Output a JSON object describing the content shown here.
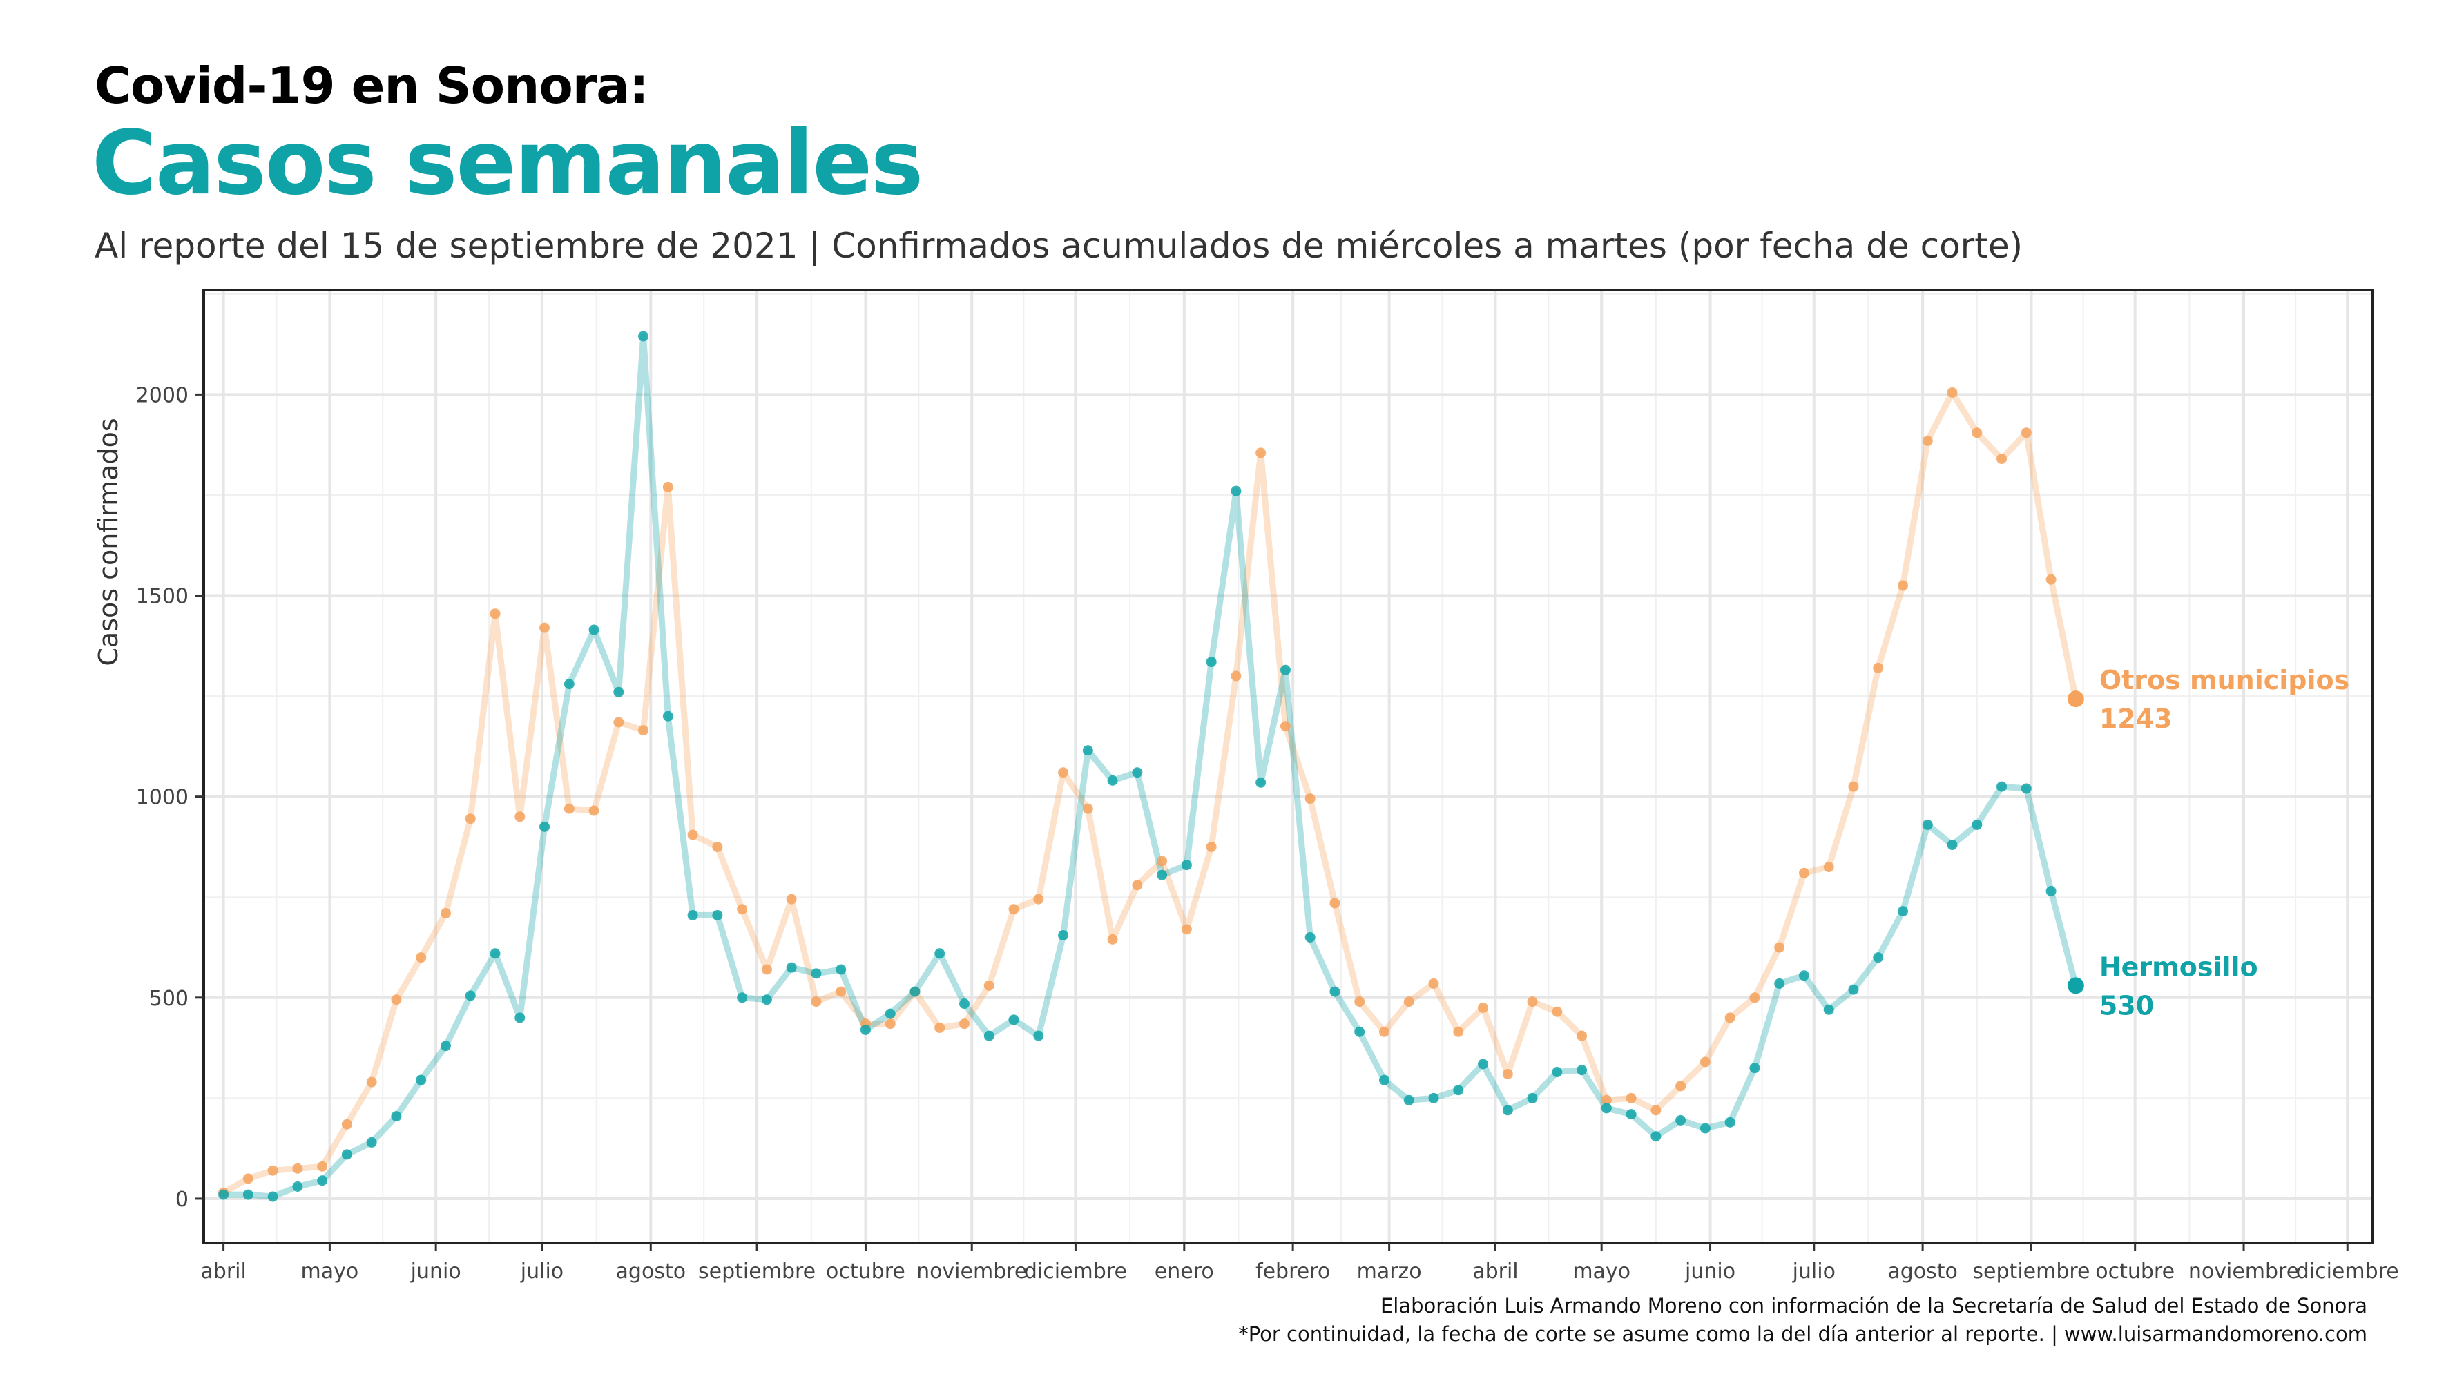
{
  "header": {
    "title": "Covid-19 en Sonora:",
    "subtitle_main": "Casos semanales",
    "description": "Al reporte del 15 de septiembre de 2021 | Confirmados acumulados de miércoles a martes (por fecha de corte)"
  },
  "footer": {
    "credit_line1": "Elaboración Luis Armando Moreno con información de la Secretaría de Salud del Estado de Sonora",
    "credit_line2": "*Por continuidad, la fecha de corte se asume como la del día anterior al reporte. | www.luisarmandomoreno.com"
  },
  "colors": {
    "hermosillo": "#0fa3a8",
    "otros": "#f5a25d",
    "title_accent": "#0fa3a8"
  },
  "chart_data": {
    "type": "line",
    "ylabel": "Casos confirmados",
    "xlabel": "",
    "ylim": [
      -110,
      2260
    ],
    "yticks": [
      0,
      500,
      1000,
      1500,
      2000
    ],
    "x_unit": "semana",
    "x_month_labels": [
      "abril",
      "mayo",
      "junio",
      "julio",
      "agosto",
      "septiembre",
      "octubre",
      "noviembre",
      "diciembre",
      "enero",
      "febrero",
      "marzo",
      "abril",
      "mayo",
      "junio",
      "julio",
      "agosto",
      "septiembre",
      "octubre",
      "noviembre",
      "diciembre"
    ],
    "x_month_week_index": [
      0,
      4.3,
      8.6,
      12.9,
      17.3,
      21.6,
      26.0,
      30.3,
      34.5,
      38.9,
      43.3,
      47.2,
      51.5,
      55.8,
      60.2,
      64.4,
      68.8,
      73.2,
      77.4,
      81.8,
      86.0
    ],
    "x_range": [
      -0.8,
      87.0
    ],
    "grid": true,
    "series": [
      {
        "name": "Otros municipios",
        "end_label": "1243",
        "values": [
          15,
          50,
          70,
          75,
          80,
          185,
          290,
          495,
          600,
          710,
          945,
          1455,
          950,
          1420,
          970,
          965,
          1185,
          1165,
          1770,
          905,
          875,
          720,
          570,
          745,
          490,
          515,
          435,
          435,
          515,
          425,
          435,
          530,
          720,
          745,
          1060,
          970,
          645,
          780,
          840,
          670,
          875,
          1300,
          1855,
          1175,
          995,
          735,
          490,
          415,
          490,
          535,
          415,
          475,
          310,
          490,
          465,
          405,
          245,
          250,
          220,
          280,
          340,
          450,
          500,
          625,
          810,
          825,
          1025,
          1320,
          1525,
          1885,
          2005,
          1905,
          1840,
          1905,
          1540,
          1243
        ]
      },
      {
        "name": "Hermosillo",
        "end_label": "530",
        "values": [
          10,
          10,
          5,
          30,
          45,
          110,
          140,
          205,
          295,
          380,
          505,
          610,
          450,
          925,
          1280,
          1415,
          1260,
          2145,
          1200,
          705,
          705,
          500,
          495,
          575,
          560,
          570,
          420,
          460,
          515,
          610,
          485,
          405,
          445,
          405,
          655,
          1115,
          1040,
          1060,
          805,
          830,
          1335,
          1760,
          1035,
          1315,
          650,
          515,
          415,
          295,
          245,
          250,
          270,
          335,
          220,
          250,
          315,
          320,
          225,
          210,
          155,
          195,
          175,
          190,
          325,
          535,
          555,
          470,
          520,
          600,
          715,
          930,
          880,
          930,
          1025,
          1020,
          765,
          530
        ]
      }
    ]
  }
}
